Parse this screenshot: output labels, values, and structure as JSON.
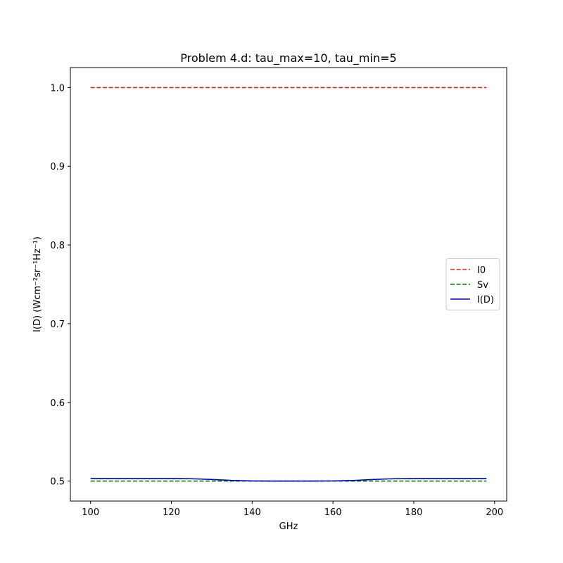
{
  "chart_data": {
    "type": "line",
    "title": "Problem 4.d: tau_max=10, tau_min=5",
    "xlabel": "GHz",
    "ylabel": "I(D) (Wcm⁻²sr⁻¹Hz⁻¹)",
    "xlim": [
      95,
      203
    ],
    "ylim": [
      0.4746,
      1.0254
    ],
    "xticks": [
      100,
      120,
      140,
      160,
      180,
      200
    ],
    "yticks": [
      0.5,
      0.6,
      0.7,
      0.8,
      0.9,
      1.0
    ],
    "xtick_labels": [
      "100",
      "120",
      "140",
      "160",
      "180",
      "200"
    ],
    "ytick_labels": [
      "0.5",
      "0.6",
      "0.7",
      "0.8",
      "0.9",
      "1.0"
    ],
    "grid": false,
    "legend_position": "center-right",
    "series": [
      {
        "name": "I0",
        "color": "#d62728",
        "style": "dashed",
        "x": [
          100,
          198
        ],
        "y": [
          1.0,
          1.0
        ]
      },
      {
        "name": "Sv",
        "color": "#008000",
        "style": "dashed",
        "x": [
          100,
          198
        ],
        "y": [
          0.5,
          0.5
        ]
      },
      {
        "name": "I(D)",
        "color": "#0000cc",
        "style": "solid",
        "x": [
          100,
          110,
          120,
          125,
          130,
          135,
          140,
          145,
          150,
          155,
          160,
          165,
          170,
          175,
          180,
          190,
          198
        ],
        "y": [
          0.5034,
          0.5034,
          0.5034,
          0.503,
          0.502,
          0.5008,
          0.5002,
          0.5,
          0.5,
          0.5,
          0.5002,
          0.5008,
          0.502,
          0.503,
          0.5034,
          0.5034,
          0.5034
        ]
      }
    ]
  }
}
